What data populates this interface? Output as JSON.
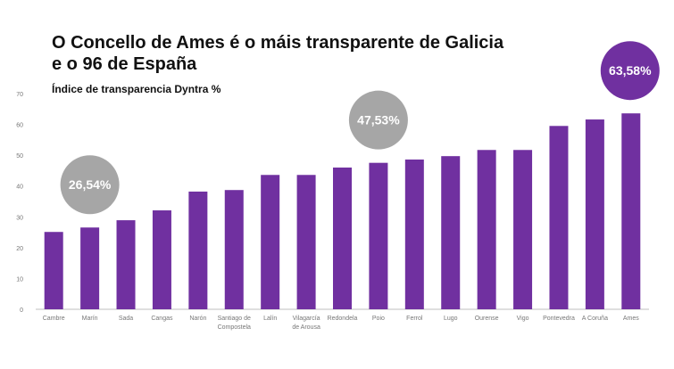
{
  "chart_data": {
    "type": "bar",
    "title_lines": [
      "O Concello de Ames é o máis transparente de Galicia",
      "e o 96 de España"
    ],
    "subtitle": "Índice de transparencia Dyntra %",
    "categories": [
      "Cambre",
      "Marín",
      "Sada",
      "Cangas",
      "Narón",
      "Santiago de Compostela",
      "Lalín",
      "Vilagarcía de Arousa",
      "Redondela",
      "Poio",
      "Ferrol",
      "Lugo",
      "Ourense",
      "Vigo",
      "Pontevedra",
      "A Coruña",
      "Ames"
    ],
    "category_lines": [
      [
        "Cambre"
      ],
      [
        "Marín"
      ],
      [
        "Sada"
      ],
      [
        "Cangas"
      ],
      [
        "Narón"
      ],
      [
        "Santiago de",
        "Compostela"
      ],
      [
        "Lalín"
      ],
      [
        "Vilagarcía",
        "de Arousa"
      ],
      [
        "Redondela"
      ],
      [
        "Poio"
      ],
      [
        "Ferrol"
      ],
      [
        "Lugo"
      ],
      [
        "Ourense"
      ],
      [
        "Vigo"
      ],
      [
        "Pontevedra"
      ],
      [
        "A Coruña"
      ],
      [
        "Ames"
      ]
    ],
    "values": [
      25.1,
      26.54,
      28.9,
      32.1,
      38.2,
      38.7,
      43.6,
      43.6,
      46.0,
      47.53,
      48.6,
      49.7,
      51.7,
      51.7,
      59.5,
      61.6,
      63.58
    ],
    "ylim": [
      0,
      70
    ],
    "yticks": [
      0,
      10,
      20,
      30,
      40,
      50,
      60,
      70
    ],
    "grid": false,
    "legend": "none",
    "annotations": [
      {
        "category": "Marín",
        "text": "26,54%",
        "color": "#a6a6a6"
      },
      {
        "category": "Poio",
        "text": "47,53%",
        "color": "#a6a6a6"
      },
      {
        "category": "Ames",
        "text": "63,58%",
        "color": "#7030a0"
      }
    ],
    "colors": {
      "bar": "#7030a0",
      "axis": "#bfbfbf",
      "tick_text": "#777777"
    }
  }
}
